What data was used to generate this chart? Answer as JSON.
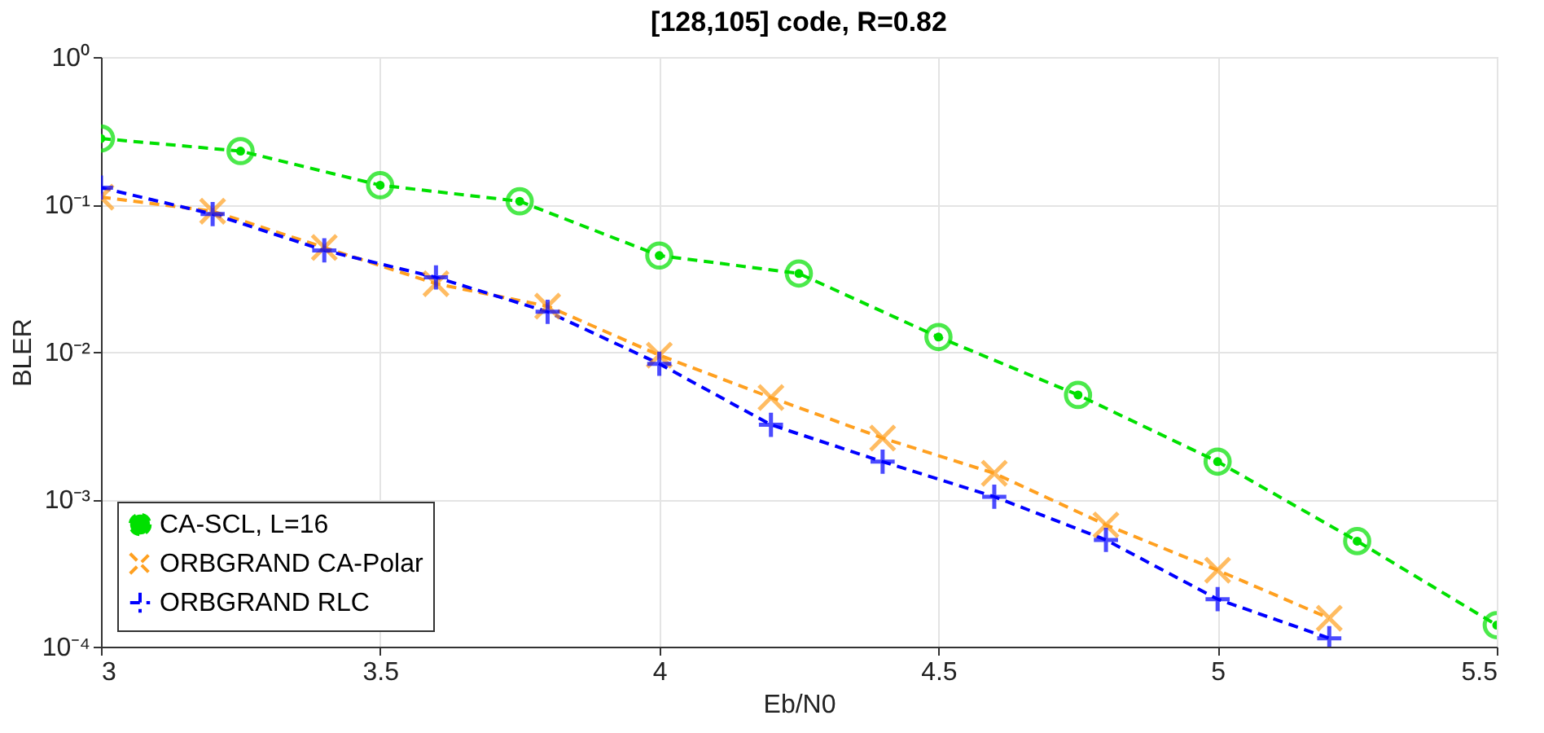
{
  "chart_data": {
    "type": "line",
    "title": "[128,105] code, R=0.82",
    "xlabel": "Eb/N0",
    "ylabel": "BLER",
    "log": "y",
    "grid": true,
    "legend": "bottom left",
    "line_style": "dashed",
    "xlim": [
      3,
      5.5
    ],
    "xticks": [
      3,
      3.5,
      4,
      4.5,
      5,
      5.5
    ],
    "ylim": [
      0.0001,
      1
    ],
    "yticks": [
      {
        "value": 0.0001,
        "label": "10⁻⁴"
      },
      {
        "value": 0.001,
        "label": "10⁻³"
      },
      {
        "value": 0.01,
        "label": "10⁻²"
      },
      {
        "value": 0.1,
        "label": "10⁻¹"
      },
      {
        "value": 1,
        "label": "10⁰"
      }
    ],
    "series": [
      {
        "name": "CA-SCL, L=16",
        "color": "#00e000",
        "marker": "circle",
        "x": [
          3,
          3.25,
          3.5,
          3.75,
          4,
          4.25,
          4.5,
          4.75,
          5,
          5.25,
          5.5
        ],
        "values": [
          0.28,
          0.23,
          0.135,
          0.105,
          0.045,
          0.034,
          0.0126,
          0.0051,
          0.0018,
          0.00052,
          0.00014
        ]
      },
      {
        "name": "ORBGRAND CA-Polar",
        "color": "#ffa020",
        "marker": "x",
        "x": [
          3,
          3.2,
          3.4,
          3.6,
          3.8,
          4,
          4.2,
          4.4,
          4.6,
          4.8,
          5,
          5.2
        ],
        "values": [
          0.112,
          0.09,
          0.051,
          0.029,
          0.0204,
          0.0095,
          0.0049,
          0.0026,
          0.0015,
          0.00067,
          0.00033,
          0.000156
        ]
      },
      {
        "name": "ORBGRAND RLC",
        "color": "#0000ff",
        "marker": "plus",
        "x": [
          3,
          3.2,
          3.4,
          3.6,
          3.8,
          4,
          4.2,
          4.4,
          4.6,
          4.8,
          5,
          5.2
        ],
        "values": [
          0.13,
          0.086,
          0.0488,
          0.032,
          0.0187,
          0.0083,
          0.0032,
          0.0018,
          0.00104,
          0.00053,
          0.00021,
          0.000114
        ]
      }
    ]
  }
}
